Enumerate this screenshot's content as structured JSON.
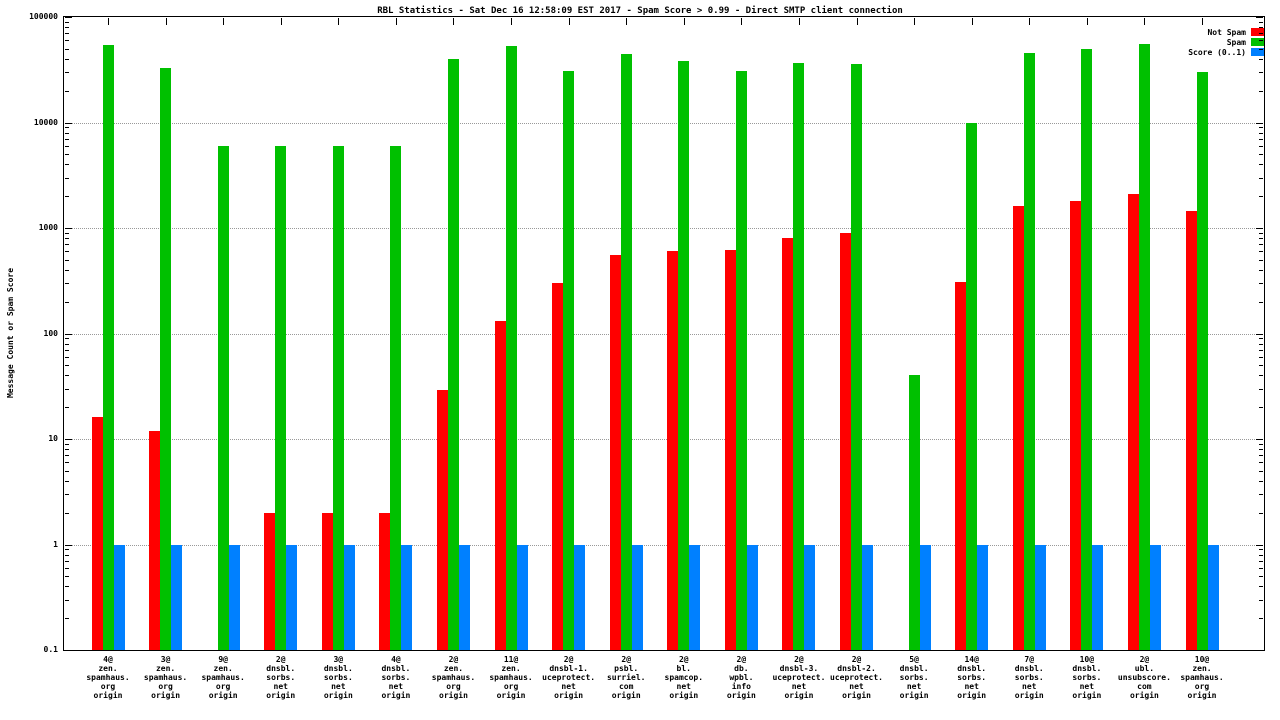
{
  "chart_data": {
    "type": "bar",
    "scale": "log",
    "title": "RBL Statistics - Sat Dec 16 12:58:09 EST 2017 - Spam Score > 0.99 - Direct SMTP client connection",
    "xlabel": "",
    "ylabel": "Message Count or Spam Score",
    "ylim": [
      0.1,
      100000
    ],
    "yticks": [
      100000,
      10000,
      1000,
      100,
      10,
      1,
      0.1
    ],
    "ytick_labels": [
      "100000",
      "10000",
      "1000",
      "100",
      "10",
      "1",
      "0.1"
    ],
    "grid": true,
    "legend_position": "top-right",
    "categories": [
      "4@\nzen.\nspamhaus.\norg\norigin",
      "3@\nzen.\nspamhaus.\norg\norigin",
      "9@\nzen.\nspamhaus.\norg\norigin",
      "2@\ndnsbl.\nsorbs.\nnet\norigin",
      "3@\ndnsbl.\nsorbs.\nnet\norigin",
      "4@\ndnsbl.\nsorbs.\nnet\norigin",
      "2@\nzen.\nspamhaus.\norg\norigin",
      "11@\nzen.\nspamhaus.\norg\norigin",
      "2@\ndnsbl-1.\nuceprotect.\nnet\norigin",
      "2@\npsbl.\nsurriel.\ncom\norigin",
      "2@\nbl.\nspamcop.\nnet\norigin",
      "2@\ndb.\nwpbl.\ninfo\norigin",
      "2@\ndnsbl-3.\nuceprotect.\nnet\norigin",
      "2@\ndnsbl-2.\nuceprotect.\nnet\norigin",
      "5@\ndnsbl.\nsorbs.\nnet\norigin",
      "14@\ndnsbl.\nsorbs.\nnet\norigin",
      "7@\ndnsbl.\nsorbs.\nnet\norigin",
      "10@\ndnsbl.\nsorbs.\nnet\norigin",
      "2@\nubl.\nunsubscore.\ncom\norigin",
      "10@\nzen.\nspamhaus.\norg\norigin"
    ],
    "series": [
      {
        "name": "Not Spam",
        "color": "#ff0000",
        "values": [
          16,
          12,
          0,
          2,
          2,
          2,
          29,
          130,
          300,
          550,
          600,
          620,
          800,
          900,
          0,
          310,
          1600,
          1800,
          2100,
          1450
        ]
      },
      {
        "name": "Spam",
        "color": "#00c000",
        "values": [
          54000,
          33000,
          6000,
          6000,
          6000,
          6000,
          40000,
          53000,
          31000,
          45000,
          38000,
          31000,
          37000,
          36000,
          40,
          10000,
          46000,
          50000,
          55000,
          30000
        ]
      },
      {
        "name": "Score (0..1)",
        "color": "#0080ff",
        "values": [
          1,
          1,
          1,
          1,
          1,
          1,
          1,
          1,
          1,
          1,
          1,
          1,
          1,
          1,
          1,
          1,
          1,
          1,
          1,
          1
        ]
      }
    ]
  }
}
